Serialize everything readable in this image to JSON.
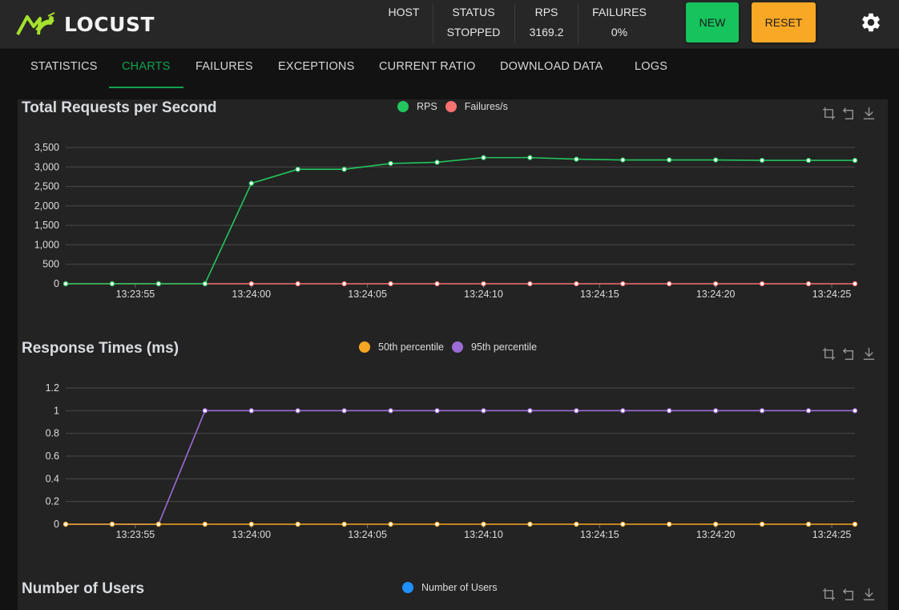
{
  "app": {
    "name": "LOCUST"
  },
  "header": {
    "host_label": "HOST",
    "status_label": "STATUS",
    "status_value": "STOPPED",
    "rps_label": "RPS",
    "rps_value": "3169.2",
    "failures_label": "FAILURES",
    "failures_value": "0%",
    "new_button": "NEW",
    "reset_button": "RESET"
  },
  "tabs": [
    {
      "label": "STATISTICS"
    },
    {
      "label": "CHARTS",
      "active": true
    },
    {
      "label": "FAILURES"
    },
    {
      "label": "EXCEPTIONS"
    },
    {
      "label": "CURRENT RATIO"
    },
    {
      "label": "DOWNLOAD DATA"
    },
    {
      "label": "LOGS"
    }
  ],
  "colors": {
    "accent": "#11a34f",
    "new_button": "#16c35c",
    "reset_button": "#f9a825",
    "rps": "#22c55e",
    "failures": "#f87171",
    "p50": "#f5a623",
    "p95": "#9b6cd6",
    "users": "#1e90ff"
  },
  "icons": {
    "zoom": "crop-icon",
    "restore": "restore-icon",
    "save": "download-icon",
    "settings": "gear-icon"
  },
  "chart_data": [
    {
      "type": "line",
      "title": "Total Requests per Second",
      "x": [
        "13:23:52",
        "13:23:54",
        "13:23:56",
        "13:23:58",
        "13:24:00",
        "13:24:02",
        "13:24:04",
        "13:24:06",
        "13:24:08",
        "13:24:10",
        "13:24:12",
        "13:24:14",
        "13:24:16",
        "13:24:18",
        "13:24:20",
        "13:24:22",
        "13:24:24",
        "13:24:26"
      ],
      "xticks": [
        "13:23:55",
        "13:24:00",
        "13:24:05",
        "13:24:10",
        "13:24:15",
        "13:24:20",
        "13:24:25"
      ],
      "yticks": [
        "0",
        "500",
        "1,000",
        "1,500",
        "2,000",
        "2,500",
        "3,000",
        "3,500"
      ],
      "ylim": [
        0,
        3500
      ],
      "series": [
        {
          "name": "RPS",
          "color": "#22c55e",
          "values": [
            0,
            0,
            0,
            0,
            2580,
            2940,
            2940,
            3090,
            3120,
            3240,
            3240,
            3200,
            3180,
            3180,
            3180,
            3170,
            3169,
            3169
          ]
        },
        {
          "name": "Failures/s",
          "color": "#f87171",
          "values": [
            0,
            0,
            0,
            0,
            0,
            0,
            0,
            0,
            0,
            0,
            0,
            0,
            0,
            0,
            0,
            0,
            0,
            0
          ]
        }
      ]
    },
    {
      "type": "line",
      "title": "Response Times (ms)",
      "x": [
        "13:23:52",
        "13:23:54",
        "13:23:56",
        "13:23:58",
        "13:24:00",
        "13:24:02",
        "13:24:04",
        "13:24:06",
        "13:24:08",
        "13:24:10",
        "13:24:12",
        "13:24:14",
        "13:24:16",
        "13:24:18",
        "13:24:20",
        "13:24:22",
        "13:24:24",
        "13:24:26"
      ],
      "xticks": [
        "13:23:55",
        "13:24:00",
        "13:24:05",
        "13:24:10",
        "13:24:15",
        "13:24:20",
        "13:24:25"
      ],
      "yticks": [
        "0",
        "0.2",
        "0.4",
        "0.6",
        "0.8",
        "1",
        "1.2"
      ],
      "ylim": [
        0,
        1.2
      ],
      "series": [
        {
          "name": "50th percentile",
          "color": "#f5a623",
          "values": [
            0,
            0,
            0,
            0,
            0,
            0,
            0,
            0,
            0,
            0,
            0,
            0,
            0,
            0,
            0,
            0,
            0,
            0
          ]
        },
        {
          "name": "95th percentile",
          "color": "#9b6cd6",
          "values": [
            0,
            0,
            0,
            1,
            1,
            1,
            1,
            1,
            1,
            1,
            1,
            1,
            1,
            1,
            1,
            1,
            1,
            1
          ]
        }
      ]
    },
    {
      "type": "line",
      "title": "Number of Users",
      "series": [
        {
          "name": "Number of Users",
          "color": "#1e90ff",
          "values": []
        }
      ]
    }
  ]
}
